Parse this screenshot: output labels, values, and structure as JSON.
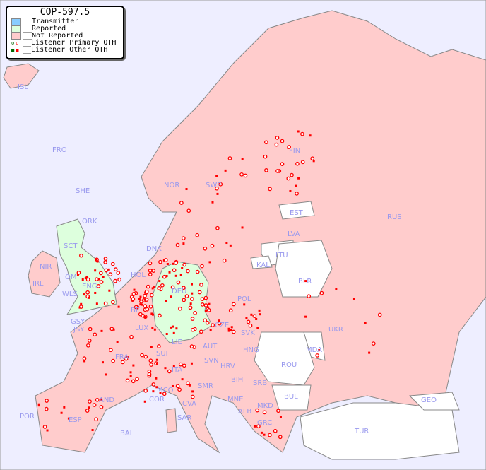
{
  "title": "COP-597.5",
  "legend": [
    {
      "label": "__Transmitter",
      "color": "#88ccff"
    },
    {
      "label": "__Reported",
      "color": "#ddffdd"
    },
    {
      "label": "__Not Reported",
      "color": "#ffcccc"
    },
    {
      "label": "__Listener Primary QTH",
      "marker": "circle"
    },
    {
      "label": "__Listener Other QTH",
      "marker": "square"
    }
  ],
  "colors": {
    "sea": "#eeeeff",
    "not_reported": "#ffcccc",
    "reported": "#ddffdd",
    "no_data": "#ffffff",
    "listener": "#ff0000",
    "listener_alt": "#006600",
    "label": "#9999ee"
  },
  "countries": [
    {
      "code": "ISL",
      "status": "not_reported"
    },
    {
      "code": "FRO",
      "status": "not_reported"
    },
    {
      "code": "SHE",
      "status": "not_reported"
    },
    {
      "code": "ORK",
      "status": "reported"
    },
    {
      "code": "NOR",
      "status": "not_reported"
    },
    {
      "code": "SWE",
      "status": "not_reported"
    },
    {
      "code": "FIN",
      "status": "not_reported"
    },
    {
      "code": "RUS",
      "status": "not_reported"
    },
    {
      "code": "EST",
      "status": "none"
    },
    {
      "code": "LVA",
      "status": "not_reported"
    },
    {
      "code": "LTU",
      "status": "none"
    },
    {
      "code": "KAL",
      "status": "none"
    },
    {
      "code": "BLR",
      "status": "none"
    },
    {
      "code": "DNK",
      "status": "not_reported"
    },
    {
      "code": "SCT",
      "status": "reported"
    },
    {
      "code": "NIR",
      "status": "not_reported"
    },
    {
      "code": "IRL",
      "status": "not_reported"
    },
    {
      "code": "IOM",
      "status": "reported"
    },
    {
      "code": "ENG",
      "status": "reported"
    },
    {
      "code": "WLS",
      "status": "reported"
    },
    {
      "code": "HOL",
      "status": "not_reported"
    },
    {
      "code": "BEL",
      "status": "not_reported"
    },
    {
      "code": "DEU",
      "status": "reported"
    },
    {
      "code": "POL",
      "status": "not_reported"
    },
    {
      "code": "UKR",
      "status": "not_reported"
    },
    {
      "code": "GSY",
      "status": "not_reported"
    },
    {
      "code": "JSY",
      "status": "not_reported"
    },
    {
      "code": "LUX",
      "status": "not_reported"
    },
    {
      "code": "CZE",
      "status": "not_reported"
    },
    {
      "code": "SVK",
      "status": "not_reported"
    },
    {
      "code": "FRA",
      "status": "not_reported"
    },
    {
      "code": "LIE",
      "status": "not_reported"
    },
    {
      "code": "AUT",
      "status": "not_reported"
    },
    {
      "code": "HNG",
      "status": "not_reported"
    },
    {
      "code": "MDA",
      "status": "none"
    },
    {
      "code": "SUI",
      "status": "not_reported"
    },
    {
      "code": "SVN",
      "status": "not_reported"
    },
    {
      "code": "HRV",
      "status": "not_reported"
    },
    {
      "code": "ROU",
      "status": "none"
    },
    {
      "code": "ITA",
      "status": "not_reported"
    },
    {
      "code": "BIH",
      "status": "not_reported"
    },
    {
      "code": "SRB",
      "status": "not_reported"
    },
    {
      "code": "SMR",
      "status": "not_reported"
    },
    {
      "code": "MCO",
      "status": "not_reported"
    },
    {
      "code": "COR",
      "status": "not_reported"
    },
    {
      "code": "AND",
      "status": "not_reported"
    },
    {
      "code": "CVA",
      "status": "not_reported"
    },
    {
      "code": "MNE",
      "status": "not_reported"
    },
    {
      "code": "BUL",
      "status": "none"
    },
    {
      "code": "GEO",
      "status": "none"
    },
    {
      "code": "MKD",
      "status": "none"
    },
    {
      "code": "ALB",
      "status": "none"
    },
    {
      "code": "POR",
      "status": "not_reported"
    },
    {
      "code": "ESP",
      "status": "not_reported"
    },
    {
      "code": "SAR",
      "status": "not_reported"
    },
    {
      "code": "GRC",
      "status": "not_reported"
    },
    {
      "code": "TUR",
      "status": "none"
    },
    {
      "code": "BAL",
      "status": "not_reported"
    }
  ]
}
